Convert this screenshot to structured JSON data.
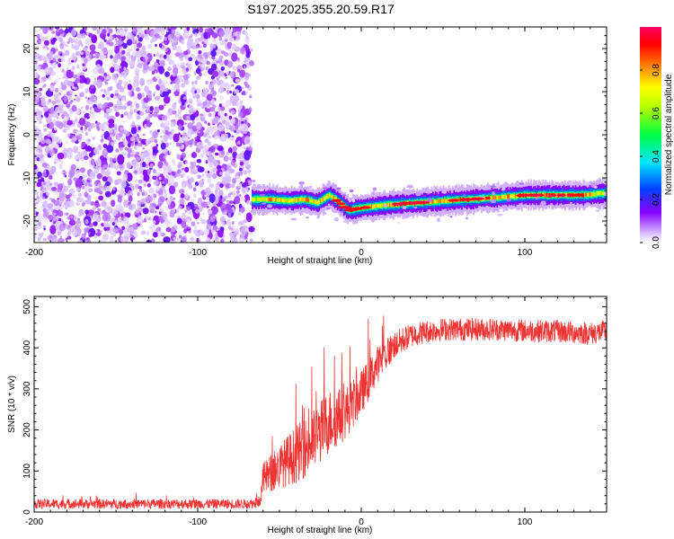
{
  "title": "S197.2025.355.20.59.R17",
  "chart_data": [
    {
      "type": "heatmap",
      "name": "spectrogram",
      "xlabel": "Height of straight line (km)",
      "ylabel": "Frequency (Hz)",
      "xlim": [
        -200,
        150
      ],
      "ylim": [
        -25,
        25
      ],
      "xticks": [
        -200,
        -100,
        0,
        100
      ],
      "yticks": [
        -20,
        -10,
        0,
        10,
        20
      ],
      "colorbar": {
        "label": "Normalized spectral amplitude",
        "range": [
          0,
          1
        ],
        "ticks": [
          0.0,
          0.2,
          0.4,
          0.6,
          0.8
        ],
        "tick_labels": [
          "0.0",
          "0.2",
          "0.4",
          "0.6",
          "0.8"
        ],
        "colors": [
          "#ffffff",
          "#8800ff",
          "#0044ff",
          "#00e5ff",
          "#00ff44",
          "#ffff00",
          "#ff7f00",
          "#ff0000",
          "#ff0066"
        ]
      },
      "noise_region": {
        "x_range": [
          -200,
          -67
        ],
        "freq_range": [
          -25,
          25
        ],
        "amplitude_range": [
          0.0,
          0.2
        ]
      },
      "carrier_track": [
        {
          "x": -67,
          "freq": -15.0,
          "amplitude": 0.65
        },
        {
          "x": -55,
          "freq": -15.0,
          "amplitude": 0.8
        },
        {
          "x": -45,
          "freq": -15.3,
          "amplitude": 0.7
        },
        {
          "x": -35,
          "freq": -15.0,
          "amplitude": 0.8
        },
        {
          "x": -27,
          "freq": -15.8,
          "amplitude": 0.75
        },
        {
          "x": -20,
          "freq": -14.0,
          "amplitude": 0.7
        },
        {
          "x": -14,
          "freq": -15.5,
          "amplitude": 0.85
        },
        {
          "x": -8,
          "freq": -17.5,
          "amplitude": 0.9
        },
        {
          "x": 0,
          "freq": -17.0,
          "amplitude": 0.85
        },
        {
          "x": 10,
          "freq": -16.5,
          "amplitude": 0.7
        },
        {
          "x": 25,
          "freq": -16.0,
          "amplitude": 0.95
        },
        {
          "x": 45,
          "freq": -15.5,
          "amplitude": 0.75
        },
        {
          "x": 65,
          "freq": -15.0,
          "amplitude": 0.9
        },
        {
          "x": 85,
          "freq": -14.5,
          "amplitude": 0.75
        },
        {
          "x": 100,
          "freq": -14.0,
          "amplitude": 0.9
        },
        {
          "x": 120,
          "freq": -14.0,
          "amplitude": 0.85
        },
        {
          "x": 135,
          "freq": -14.0,
          "amplitude": 0.9
        },
        {
          "x": 150,
          "freq": -13.5,
          "amplitude": 0.6
        }
      ]
    },
    {
      "type": "line",
      "name": "snr",
      "xlabel": "Height of straight line (km)",
      "ylabel": "SNR (10 * v/v)",
      "xlim": [
        -200,
        150
      ],
      "ylim": [
        0,
        525
      ],
      "xticks": [
        -200,
        -100,
        0,
        100
      ],
      "yticks": [
        0,
        100,
        200,
        300,
        400,
        500
      ],
      "series": [
        {
          "name": "SNR",
          "color": "#ee3333",
          "x": [
            -200,
            -150,
            -100,
            -70,
            -62,
            -60,
            -50,
            -40,
            -30,
            -20,
            -10,
            0,
            10,
            20,
            30,
            40,
            50,
            60,
            80,
            100,
            120,
            140,
            150
          ],
          "y": [
            20,
            20,
            20,
            20,
            22,
            80,
            110,
            140,
            170,
            220,
            240,
            290,
            360,
            405,
            430,
            440,
            445,
            445,
            445,
            442,
            440,
            435,
            440
          ],
          "spread": [
            12,
            12,
            12,
            12,
            12,
            40,
            55,
            70,
            75,
            80,
            65,
            55,
            45,
            35,
            30,
            28,
            28,
            28,
            28,
            28,
            28,
            28,
            28
          ]
        }
      ]
    }
  ]
}
